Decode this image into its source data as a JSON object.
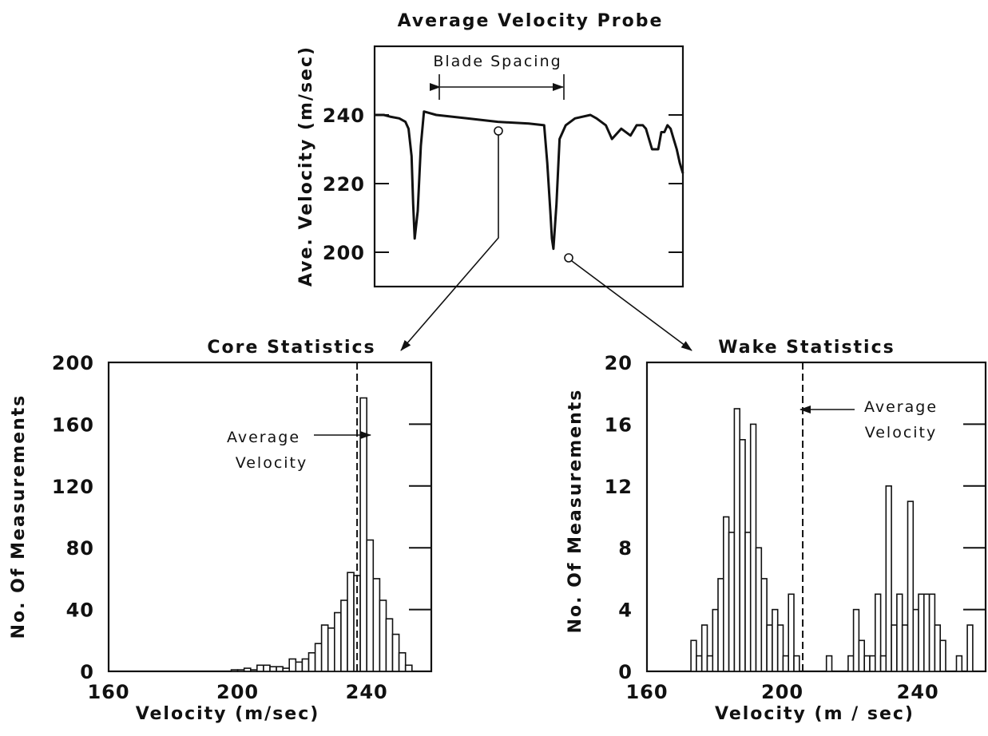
{
  "chart_data": [
    {
      "id": "probe",
      "type": "line",
      "title": "Average Velocity Probe",
      "ylabel": "Ave. Velocity (m/sec)",
      "xlabel": "",
      "ylim": [
        190,
        260
      ],
      "yticks": [
        200,
        220,
        240
      ],
      "grid": false,
      "annotations": [
        "Blade Spacing"
      ],
      "x": [
        0,
        3,
        5,
        8,
        10,
        11,
        12,
        12.5,
        13,
        14,
        15,
        16,
        20,
        30,
        40,
        50,
        55,
        56,
        57,
        57.5,
        58,
        59,
        60,
        62,
        65,
        70,
        72,
        75,
        77,
        80,
        83,
        85,
        87,
        88,
        90,
        92,
        93,
        94,
        95,
        96,
        97,
        98,
        99,
        100
      ],
      "y": [
        240,
        240,
        239.5,
        239,
        238,
        236,
        228,
        214,
        204,
        212,
        231,
        241,
        240,
        239,
        238,
        237.5,
        237,
        226,
        212,
        204,
        201,
        214,
        233,
        237,
        239,
        240,
        239,
        237,
        233,
        236,
        234,
        237,
        237,
        236,
        230,
        230,
        235,
        235,
        237,
        236,
        233,
        230,
        226,
        223
      ]
    },
    {
      "id": "core",
      "type": "bar",
      "title": "Core Statistics",
      "xlabel": "Velocity (m/sec)",
      "ylabel": "No. Of Measurements",
      "xlim": [
        160,
        260
      ],
      "ylim": [
        0,
        200
      ],
      "xticks": [
        160,
        200,
        240
      ],
      "yticks": [
        0,
        40,
        80,
        120,
        160,
        200
      ],
      "bin_width": 2,
      "grid": false,
      "average_velocity": 237,
      "annotation": [
        "Average",
        "Velocity"
      ],
      "x": [
        198,
        200,
        202,
        204,
        206,
        208,
        210,
        212,
        214,
        216,
        218,
        220,
        222,
        224,
        226,
        228,
        230,
        232,
        234,
        236,
        238,
        240,
        242,
        244,
        246,
        248,
        250,
        252
      ],
      "values": [
        1,
        1,
        2,
        1,
        4,
        4,
        3,
        3,
        2,
        8,
        6,
        8,
        12,
        18,
        30,
        28,
        38,
        46,
        64,
        62,
        177,
        85,
        60,
        46,
        34,
        24,
        12,
        4
      ]
    },
    {
      "id": "wake",
      "type": "bar",
      "title": "Wake Statistics",
      "xlabel": "Velocity (m / sec)",
      "ylabel": "No. Of Measurements",
      "xlim": [
        160,
        260
      ],
      "ylim": [
        0,
        20
      ],
      "xticks": [
        160,
        200,
        240
      ],
      "yticks": [
        0,
        4,
        8,
        12,
        16,
        20
      ],
      "bin_width": 1.6,
      "grid": false,
      "average_velocity": 206,
      "annotation": [
        "Average",
        "Velocity"
      ],
      "x": [
        173,
        174.6,
        176.2,
        177.8,
        179.4,
        181,
        182.6,
        184.2,
        185.8,
        187.4,
        189,
        190.6,
        192.2,
        193.8,
        195.4,
        197,
        198.6,
        200.2,
        201.8,
        203.4,
        205,
        206.6,
        213,
        219.4,
        221,
        222.6,
        224.2,
        225.8,
        227.4,
        229,
        230.6,
        232.2,
        233.8,
        235.4,
        237,
        238.6,
        240.2,
        241.8,
        243.4,
        245,
        246.6,
        248.2,
        251.4,
        254.6
      ],
      "values": [
        2,
        1,
        3,
        1,
        4,
        6,
        10,
        9,
        17,
        15,
        9,
        16,
        8,
        6,
        3,
        4,
        3,
        1,
        5,
        1,
        0,
        0,
        1,
        1,
        4,
        2,
        1,
        1,
        5,
        1,
        12,
        3,
        5,
        3,
        11,
        4,
        5,
        5,
        5,
        3,
        2,
        0,
        1,
        3
      ]
    }
  ],
  "legend_text": {
    "blade_spacing": "Blade Spacing",
    "average": "Average",
    "velocity": "Velocity"
  }
}
